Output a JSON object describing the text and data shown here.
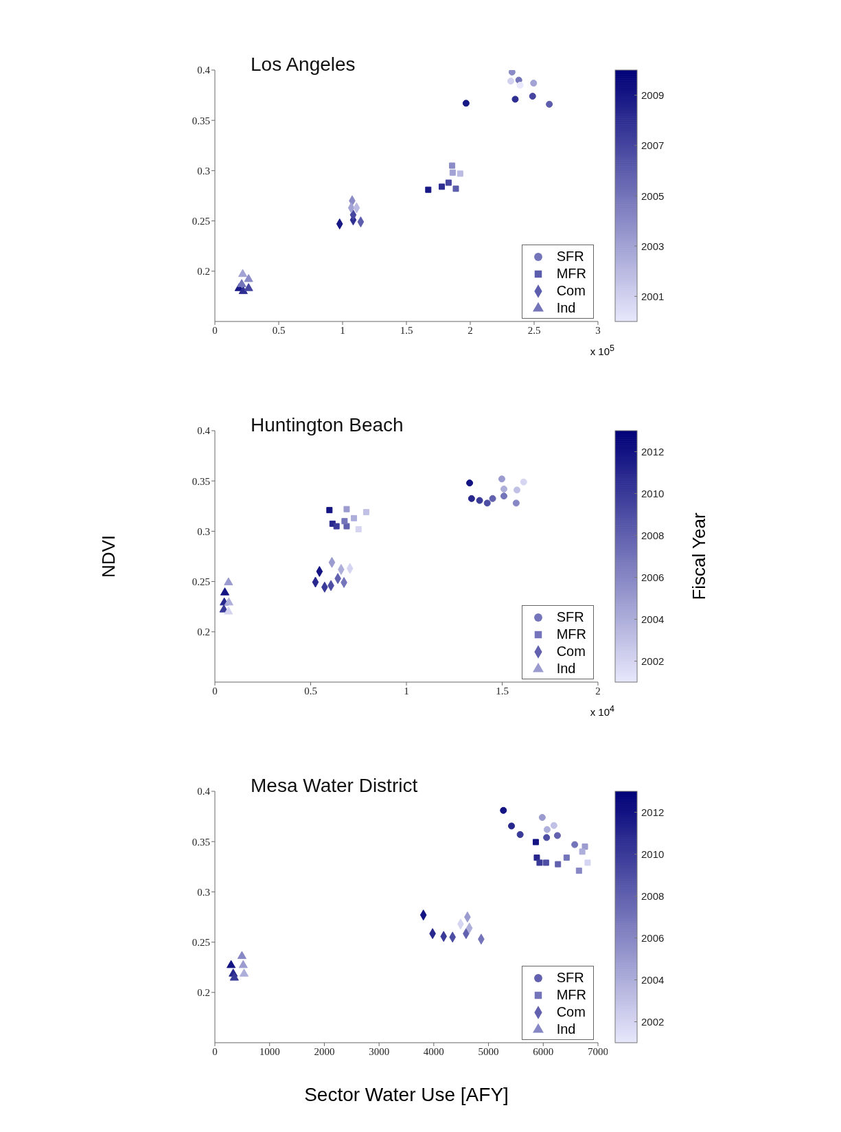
{
  "chart_data": [
    {
      "type": "scatter",
      "title": "Los Angeles",
      "xlim": [
        0,
        3
      ],
      "xticks": [
        0,
        0.5,
        1,
        1.5,
        2,
        2.5,
        3
      ],
      "ylim": [
        0.15,
        0.4
      ],
      "yticks": [
        0.2,
        0.25,
        0.3,
        0.35,
        0.4
      ],
      "annotations": [
        "x 10$^{5}$"
      ],
      "legend": "bottom right",
      "clim": [
        2000,
        2010
      ],
      "cticks": [
        2001,
        2003,
        2005,
        2007,
        2009
      ],
      "series": [
        {
          "name": "SFR",
          "marker": "circle",
          "x": [
            1.967,
            2.352,
            2.488,
            2.619,
            2.38,
            2.327,
            2.496,
            2.317,
            2.39
          ],
          "values": [
            0.367,
            0.371,
            0.374,
            0.366,
            0.39,
            0.398,
            0.387,
            0.389,
            0.385
          ],
          "cvalues": [
            2009,
            2008,
            2007,
            2006,
            2005,
            2004,
            2003,
            2001,
            2000
          ],
          "colors": [
            "#171785",
            "#2e2e92",
            "#4646a0",
            "#5d5dad",
            "#7474ba",
            "#8b8bc7",
            "#a2a2d4",
            "#d1d1ef",
            "#e8e8fc"
          ]
        },
        {
          "name": "MFR",
          "marker": "square",
          "x": [
            1.671,
            1.777,
            1.83,
            1.887,
            1.858,
            1.862,
            1.921
          ],
          "values": [
            0.281,
            0.284,
            0.288,
            0.282,
            0.305,
            0.298,
            0.297
          ],
          "cvalues": [
            2009,
            2008,
            2007,
            2006,
            2004,
            2003,
            2002
          ],
          "colors": [
            "#171785",
            "#2e2e92",
            "#4646a0",
            "#5d5dad",
            "#8b8bc7",
            "#a2a2d4",
            "#babae2"
          ]
        },
        {
          "name": "Com",
          "marker": "diamond",
          "x": [
            0.977,
            1.083,
            1.083,
            1.142,
            1.075,
            1.068,
            1.11
          ],
          "values": [
            0.247,
            0.251,
            0.256,
            0.249,
            0.27,
            0.263,
            0.263
          ],
          "cvalues": [
            2009,
            2008,
            2007,
            2006,
            2004,
            2003,
            2002
          ],
          "colors": [
            "#171785",
            "#2e2e92",
            "#4646a0",
            "#5d5dad",
            "#8b8bc7",
            "#a2a2d4",
            "#babae2"
          ]
        },
        {
          "name": "Ind",
          "marker": "triangle",
          "x": [
            0.19,
            0.222,
            0.264,
            0.21,
            0.264,
            0.218
          ],
          "values": [
            0.183,
            0.18,
            0.183,
            0.187,
            0.192,
            0.197
          ],
          "cvalues": [
            2009,
            2008,
            2007,
            2005,
            2004,
            2003
          ],
          "colors": [
            "#171785",
            "#2e2e92",
            "#4646a0",
            "#7474ba",
            "#8b8bc7",
            "#a2a2d4"
          ]
        }
      ]
    },
    {
      "type": "scatter",
      "title": "Huntington Beach",
      "ylabel": "NDVI",
      "clabel": "Fiscal Year",
      "xlim": [
        0,
        2
      ],
      "xticks": [
        0,
        0.5,
        1,
        1.5,
        2
      ],
      "ylim": [
        0.15,
        0.4
      ],
      "yticks": [
        0.2,
        0.25,
        0.3,
        0.35,
        0.4
      ],
      "annotations": [
        "x 10$^{4}$"
      ],
      "legend": "bottom right",
      "clim": [
        2001,
        2013
      ],
      "cticks": [
        2002,
        2004,
        2006,
        2008,
        2010,
        2012
      ],
      "series": [
        {
          "name": "SFR",
          "marker": "circle",
          "x": [
            1.33,
            1.34,
            1.382,
            1.422,
            1.45,
            1.509,
            1.573,
            1.498,
            1.509,
            1.577,
            1.612
          ],
          "values": [
            0.348,
            0.3325,
            0.3306,
            0.328,
            0.3325,
            0.335,
            0.328,
            0.352,
            0.342,
            0.341,
            0.349
          ],
          "cvalues": [
            2012,
            2011,
            2010,
            2009,
            2008,
            2007,
            2006,
            2005,
            2004,
            2003,
            2002
          ],
          "colors": [
            "#131383",
            "#27278e",
            "#3a3a99",
            "#4d4da4",
            "#6161af",
            "#7474ba",
            "#8787c5",
            "#9b9bd0",
            "#aeaedb",
            "#c1c1e6",
            "#d5d5f1"
          ]
        },
        {
          "name": "MFR",
          "marker": "square",
          "x": [
            0.598,
            0.614,
            0.635,
            0.688,
            0.677,
            0.688,
            0.726,
            0.79,
            0.75
          ],
          "values": [
            0.321,
            0.3075,
            0.305,
            0.305,
            0.31,
            0.322,
            0.313,
            0.319,
            0.302
          ],
          "cvalues": [
            2012,
            2011,
            2010,
            2008,
            2007,
            2005,
            2004,
            2003,
            2002
          ],
          "colors": [
            "#131383",
            "#27278e",
            "#3a3a99",
            "#6161af",
            "#7474ba",
            "#9b9bd0",
            "#aeaedb",
            "#c1c1e6",
            "#d5d5f1"
          ]
        },
        {
          "name": "Com",
          "marker": "diamond",
          "x": [
            0.546,
            0.525,
            0.573,
            0.606,
            0.642,
            0.674,
            0.611,
            0.659,
            0.705
          ],
          "values": [
            0.26,
            0.2494,
            0.2444,
            0.246,
            0.253,
            0.249,
            0.269,
            0.262,
            0.263
          ],
          "cvalues": [
            2012,
            2011,
            2010,
            2009,
            2008,
            2007,
            2005,
            2004,
            2002
          ],
          "colors": [
            "#131383",
            "#27278e",
            "#3a3a99",
            "#4d4da4",
            "#6161af",
            "#7474ba",
            "#9b9bd0",
            "#aeaedb",
            "#d5d5f1"
          ]
        },
        {
          "name": "Ind",
          "marker": "triangle",
          "x": [
            0.052,
            0.049,
            0.047,
            0.071,
            0.073,
            0.071
          ],
          "values": [
            0.239,
            0.229,
            0.222,
            0.249,
            0.229,
            0.22
          ],
          "cvalues": [
            2012,
            2011,
            2010,
            2005,
            2004,
            2002
          ],
          "colors": [
            "#131383",
            "#27278e",
            "#3a3a99",
            "#9b9bd0",
            "#aeaedb",
            "#d5d5f1"
          ]
        }
      ]
    },
    {
      "type": "scatter",
      "title": "Mesa Water District",
      "xlabel": "Sector Water Use [AFY]",
      "xlim": [
        0,
        7000
      ],
      "xticks": [
        0,
        1000,
        2000,
        3000,
        4000,
        5000,
        6000,
        7000
      ],
      "ylim": [
        0.15,
        0.4
      ],
      "yticks": [
        0.2,
        0.25,
        0.3,
        0.35,
        0.4
      ],
      "legend": "bottom right",
      "clim": [
        2001,
        2013
      ],
      "cticks": [
        2002,
        2004,
        2006,
        2008,
        2010,
        2012
      ],
      "series": [
        {
          "name": "SFR",
          "marker": "circle",
          "x": [
            5272,
            5420,
            5578,
            6061,
            6259,
            6575,
            5982,
            6071,
            6195
          ],
          "values": [
            0.381,
            0.3655,
            0.357,
            0.354,
            0.356,
            0.347,
            0.374,
            0.362,
            0.366
          ],
          "cvalues": [
            2012,
            2011,
            2010,
            2009,
            2008,
            2007,
            2005,
            2004,
            2003
          ],
          "colors": [
            "#131383",
            "#27278e",
            "#3a3a99",
            "#4d4da4",
            "#6161af",
            "#7474ba",
            "#9b9bd0",
            "#aeaedb",
            "#c1c1e6"
          ]
        },
        {
          "name": "MFR",
          "marker": "square",
          "x": [
            5864,
            5883,
            5933,
            6051,
            6269,
            6427,
            6653,
            6762,
            6713,
            6811
          ],
          "values": [
            0.3495,
            0.334,
            0.329,
            0.329,
            0.3275,
            0.334,
            0.321,
            0.345,
            0.34,
            0.329
          ],
          "cvalues": [
            2012,
            2011,
            2010,
            2009,
            2008,
            2007,
            2006,
            2005,
            2004,
            2002
          ],
          "colors": [
            "#131383",
            "#27278e",
            "#3a3a99",
            "#4d4da4",
            "#6161af",
            "#7474ba",
            "#8787c5",
            "#9b9bd0",
            "#aeaedb",
            "#d5d5f1"
          ]
        },
        {
          "name": "Com",
          "marker": "diamond",
          "x": [
            3810,
            3978,
            4180,
            4343,
            4590,
            4866,
            4615,
            4650,
            4490
          ],
          "values": [
            0.277,
            0.2585,
            0.2557,
            0.255,
            0.2585,
            0.253,
            0.275,
            0.264,
            0.268
          ],
          "cvalues": [
            2012,
            2011,
            2010,
            2009,
            2008,
            2007,
            2005,
            2004,
            2002
          ],
          "colors": [
            "#131383",
            "#27278e",
            "#3a3a99",
            "#4d4da4",
            "#6161af",
            "#7474ba",
            "#9b9bd0",
            "#aeaedb",
            "#d5d5f1"
          ]
        },
        {
          "name": "Ind",
          "marker": "triangle",
          "x": [
            296,
            335,
            355,
            494,
            518,
            533
          ],
          "values": [
            0.227,
            0.2185,
            0.2145,
            0.236,
            0.227,
            0.2185
          ],
          "cvalues": [
            2012,
            2011,
            2010,
            2006,
            2005,
            2004
          ],
          "colors": [
            "#131383",
            "#27278e",
            "#3a3a99",
            "#8787c5",
            "#9b9bd0",
            "#aeaedb"
          ]
        }
      ]
    }
  ]
}
